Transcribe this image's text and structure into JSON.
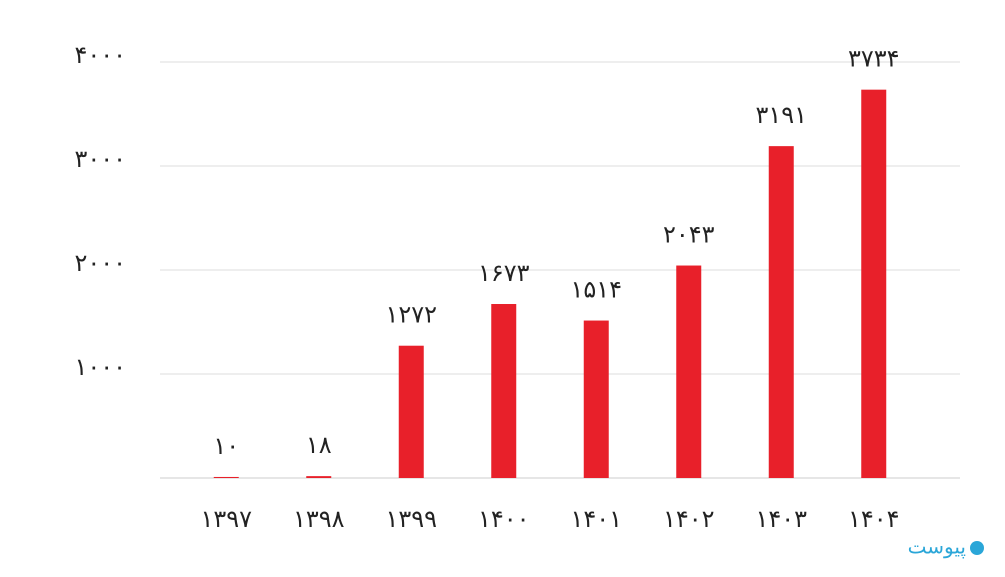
{
  "chart_data": {
    "type": "bar",
    "categories": [
      "۱۳۹۷",
      "۱۳۹۸",
      "۱۳۹۹",
      "۱۴۰۰",
      "۱۴۰۱",
      "۱۴۰۲",
      "۱۴۰۳",
      "۱۴۰۴"
    ],
    "values": [
      10,
      18,
      1272,
      1673,
      1514,
      2043,
      3191,
      3734
    ],
    "value_labels": [
      "۱۰",
      "۱۸",
      "۱۲۷۲",
      "۱۶۷۳",
      "۱۵۱۴",
      "۲۰۴۳",
      "۳۱۹۱",
      "۳۷۳۴"
    ],
    "color": "#e8202a",
    "ylim": [
      0,
      4000
    ],
    "yticks": [
      {
        "value": 1000,
        "label": "۱۰۰۰"
      },
      {
        "value": 2000,
        "label": "۲۰۰۰"
      },
      {
        "value": 3000,
        "label": "۳۰۰۰"
      },
      {
        "value": 4000,
        "label": "۴۰۰۰"
      }
    ],
    "grid": true,
    "watermark": "پیوست"
  }
}
